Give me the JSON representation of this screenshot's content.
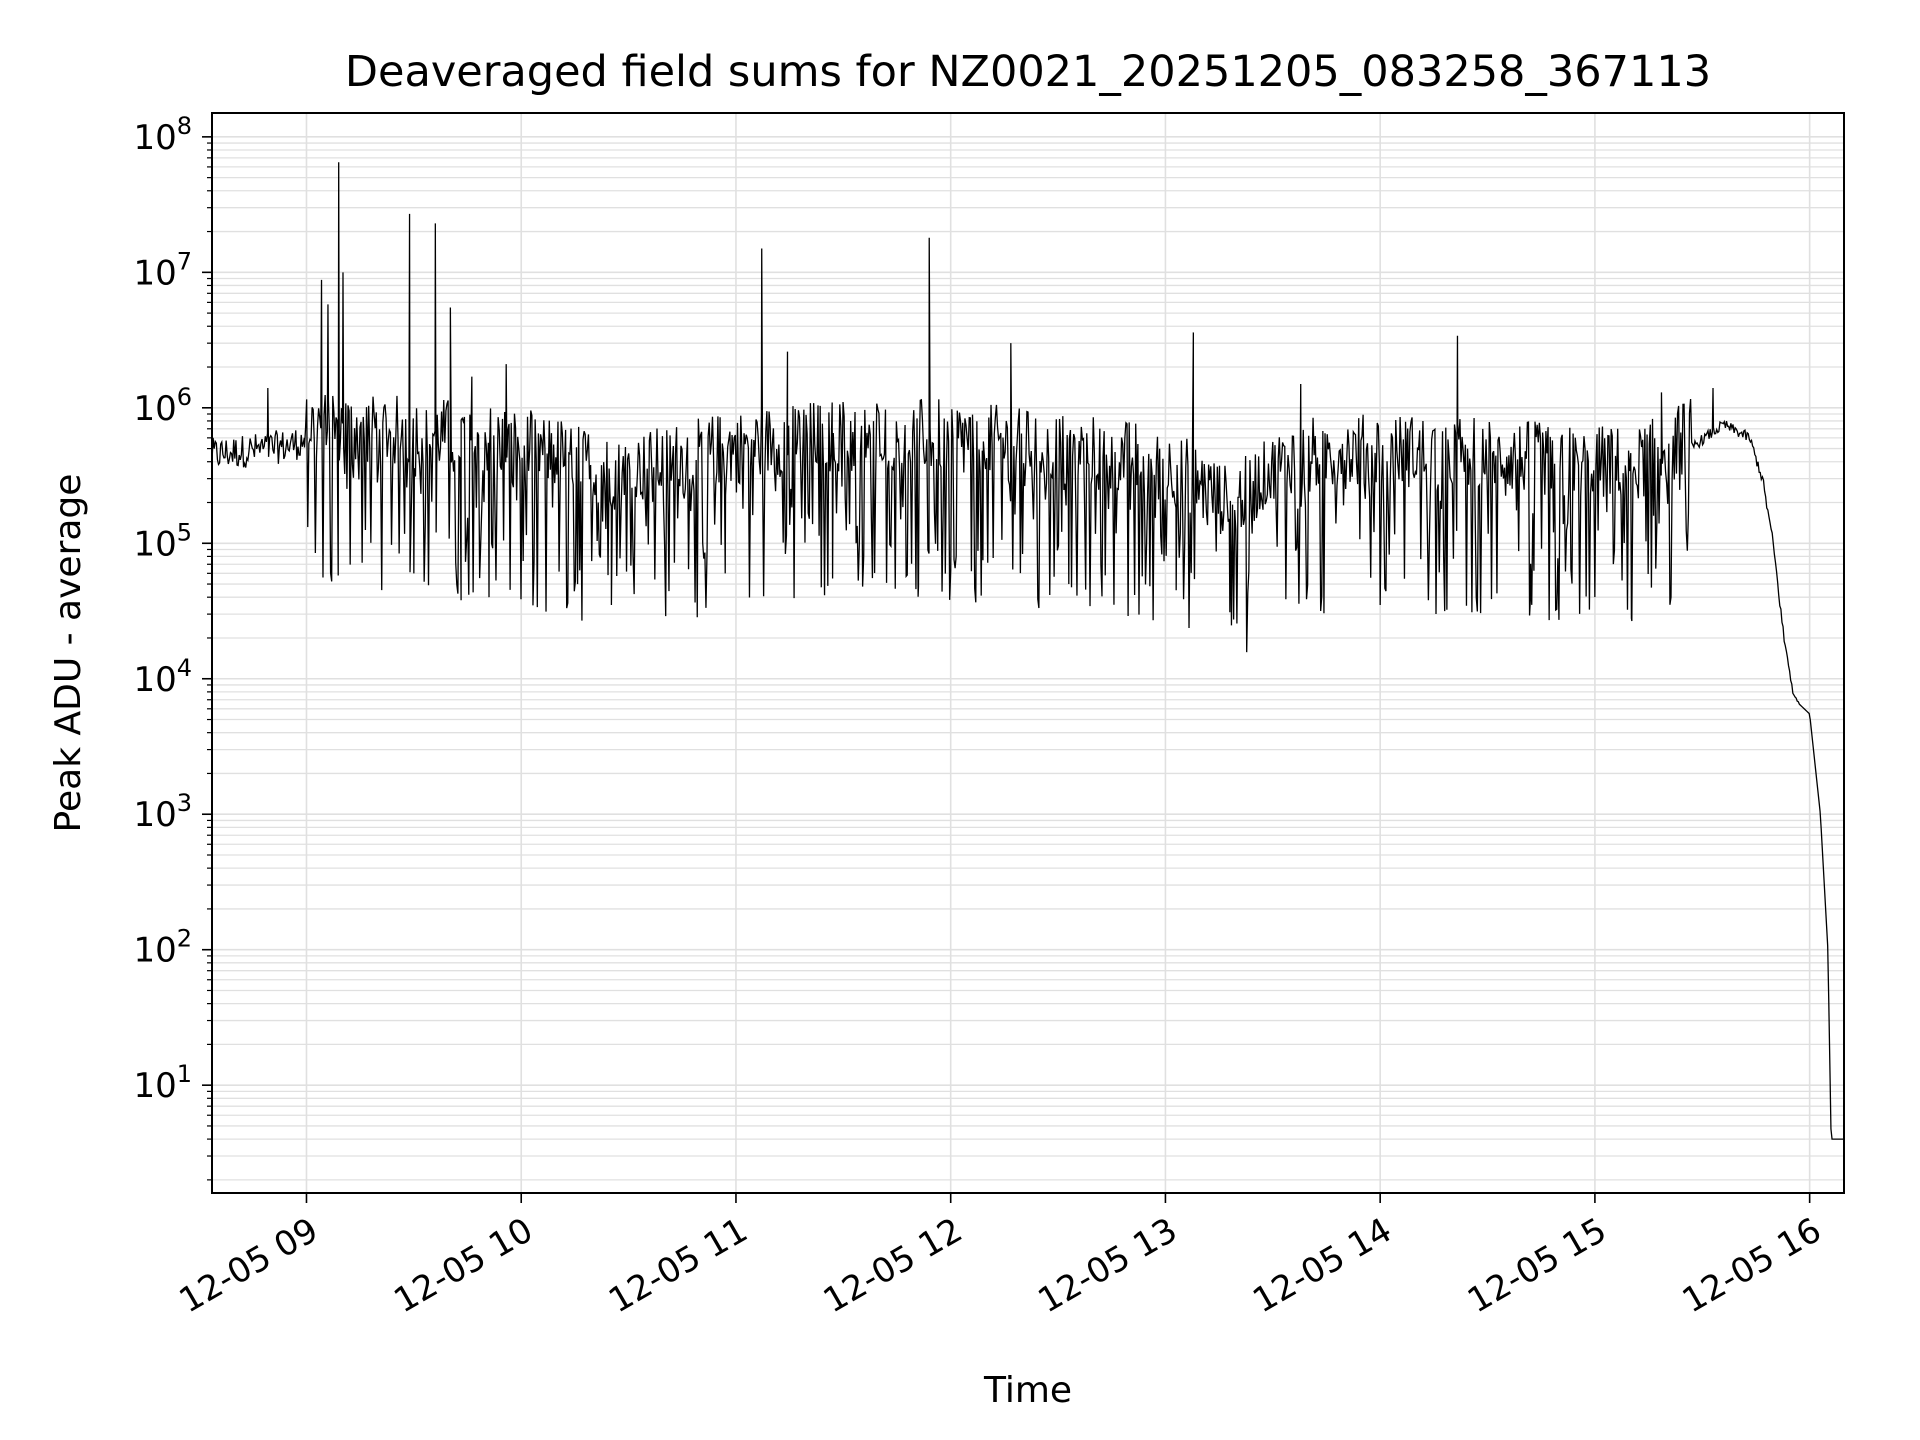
{
  "chart_data": {
    "type": "line",
    "title": "Deaveraged field sums for NZ0021_20251205_083258_367113",
    "xlabel": "Time",
    "ylabel": "Peak ADU - average",
    "yscale": "log",
    "ylim": [
      1.6,
      150000000
    ],
    "xlim_hours": [
      8.56,
      16.16
    ],
    "grid": true,
    "x_ticks": [
      {
        "value": 9,
        "label": "12-05 09"
      },
      {
        "value": 10,
        "label": "12-05 10"
      },
      {
        "value": 11,
        "label": "12-05 11"
      },
      {
        "value": 12,
        "label": "12-05 12"
      },
      {
        "value": 13,
        "label": "12-05 13"
      },
      {
        "value": 14,
        "label": "12-05 14"
      },
      {
        "value": 15,
        "label": "12-05 15"
      },
      {
        "value": 16,
        "label": "12-05 16"
      }
    ],
    "y_ticks": [
      {
        "value": 10,
        "base": "10",
        "exp": "1"
      },
      {
        "value": 100,
        "base": "10",
        "exp": "2"
      },
      {
        "value": 1000,
        "base": "10",
        "exp": "3"
      },
      {
        "value": 10000,
        "base": "10",
        "exp": "4"
      },
      {
        "value": 100000,
        "base": "10",
        "exp": "5"
      },
      {
        "value": 1000000,
        "base": "10",
        "exp": "6"
      },
      {
        "value": 10000000,
        "base": "10",
        "exp": "7"
      },
      {
        "value": 100000000,
        "base": "10",
        "exp": "8"
      }
    ],
    "series": [
      {
        "name": "Deaveraged field sum",
        "color": "#000000",
        "baseline": [
          [
            8.56,
            450000
          ],
          [
            8.9,
            520000
          ],
          [
            9.05,
            600000
          ],
          [
            9.3,
            550000
          ],
          [
            9.6,
            500000
          ],
          [
            9.9,
            450000
          ],
          [
            10.2,
            350000
          ],
          [
            10.45,
            250000
          ],
          [
            10.8,
            350000
          ],
          [
            11.2,
            450000
          ],
          [
            11.6,
            500000
          ],
          [
            12.0,
            480000
          ],
          [
            12.4,
            400000
          ],
          [
            12.8,
            350000
          ],
          [
            13.1,
            250000
          ],
          [
            13.3,
            150000
          ],
          [
            13.6,
            350000
          ],
          [
            14.0,
            380000
          ],
          [
            14.4,
            360000
          ],
          [
            14.8,
            320000
          ],
          [
            15.2,
            300000
          ],
          [
            15.4,
            450000
          ],
          [
            15.6,
            750000
          ],
          [
            15.72,
            600000
          ],
          [
            15.78,
            300000
          ],
          [
            15.83,
            100000
          ],
          [
            15.88,
            20000
          ],
          [
            15.93,
            7000
          ],
          [
            16.0,
            5500
          ],
          [
            16.05,
            1000
          ],
          [
            16.085,
            100
          ],
          [
            16.1,
            4
          ],
          [
            16.16,
            4
          ]
        ],
        "noise_end_hour": 15.45,
        "dips": [
          {
            "hour": 8.99,
            "value": 600000
          },
          {
            "hour": 9.5,
            "value": 60000
          },
          {
            "hour": 9.72,
            "value": 38000
          },
          {
            "hour": 9.85,
            "value": 40000
          },
          {
            "hour": 10.42,
            "value": 35000
          },
          {
            "hour": 10.95,
            "value": 60000
          },
          {
            "hour": 11.45,
            "value": 55000
          },
          {
            "hour": 11.85,
            "value": 48000
          },
          {
            "hour": 12.15,
            "value": 75000
          },
          {
            "hour": 12.55,
            "value": 50000
          },
          {
            "hour": 13.05,
            "value": 45000
          },
          {
            "hour": 13.3,
            "value": 31000
          },
          {
            "hour": 14.0,
            "value": 35000
          },
          {
            "hour": 14.7,
            "value": 40000
          },
          {
            "hour": 15.17,
            "value": 28000
          }
        ],
        "spikes": [
          {
            "hour": 9.07,
            "value": 8800000
          },
          {
            "hour": 9.1,
            "value": 5800000
          },
          {
            "hour": 9.15,
            "value": 65000000
          },
          {
            "hour": 9.17,
            "value": 10000000
          },
          {
            "hour": 9.48,
            "value": 27000000
          },
          {
            "hour": 9.6,
            "value": 23000000
          },
          {
            "hour": 9.67,
            "value": 5500000
          },
          {
            "hour": 9.77,
            "value": 1700000
          },
          {
            "hour": 9.93,
            "value": 2100000
          },
          {
            "hour": 8.82,
            "value": 1400000
          },
          {
            "hour": 11.12,
            "value": 15000000
          },
          {
            "hour": 11.24,
            "value": 2600000
          },
          {
            "hour": 11.9,
            "value": 18000000
          },
          {
            "hour": 12.28,
            "value": 3000000
          },
          {
            "hour": 13.13,
            "value": 3600000
          },
          {
            "hour": 13.63,
            "value": 1500000
          },
          {
            "hour": 14.36,
            "value": 3400000
          },
          {
            "hour": 15.31,
            "value": 1300000
          },
          {
            "hour": 15.55,
            "value": 1400000
          }
        ]
      }
    ]
  }
}
